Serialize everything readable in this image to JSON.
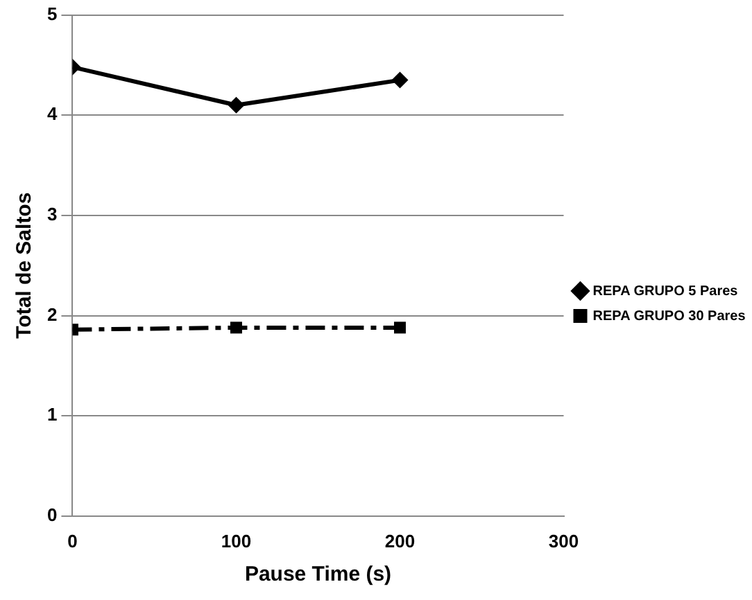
{
  "chart_data": {
    "type": "line",
    "xlabel": "Pause Time (s)",
    "ylabel": "Total de Saltos",
    "x": [
      0,
      100,
      200
    ],
    "series": [
      {
        "name": "REPA GRUPO 5 Pares",
        "color": "#000000",
        "values": [
          4.48,
          4.1,
          4.35
        ],
        "marker": "diamond",
        "line_style": "solid"
      },
      {
        "name": "REPA GRUPO 30 Pares",
        "color": "#000000",
        "values": [
          1.86,
          1.88,
          1.88
        ],
        "marker": "square",
        "line_style": "dashed"
      }
    ],
    "xlim": [
      0,
      300
    ],
    "xticks": [
      0,
      100,
      200,
      300
    ],
    "ylim": [
      0,
      5
    ],
    "yticks": [
      0,
      1,
      2,
      3,
      4,
      5
    ],
    "grid": "y",
    "legend": "right"
  }
}
